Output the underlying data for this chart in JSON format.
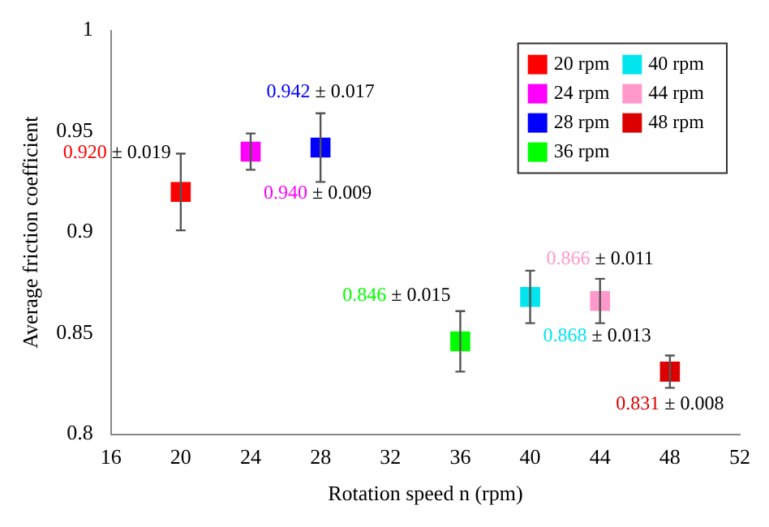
{
  "chart_data": {
    "type": "scatter",
    "xlabel": "Rotation speed n (rpm)",
    "ylabel": "Average friction coefficient",
    "xlim": [
      16,
      52
    ],
    "xticks": [
      16,
      20,
      24,
      28,
      32,
      36,
      40,
      44,
      48,
      52
    ],
    "ylim": [
      0.8,
      1
    ],
    "yticks": [
      0.8,
      0.85,
      0.9,
      0.95,
      1
    ],
    "grid": false,
    "legend": "top right",
    "marker": "square",
    "series": [
      {
        "name": "20 rpm",
        "color": "#ff0000",
        "x": [
          20
        ],
        "values": [
          0.92
        ],
        "errors": [
          0.019
        ]
      },
      {
        "name": "24 rpm",
        "color": "#ff00ff",
        "x": [
          24
        ],
        "values": [
          0.94
        ],
        "errors": [
          0.009
        ]
      },
      {
        "name": "28 rpm",
        "color": "#0000ff",
        "x": [
          28
        ],
        "values": [
          0.942
        ],
        "errors": [
          0.017
        ]
      },
      {
        "name": "36 rpm",
        "color": "#00ff00",
        "x": [
          36
        ],
        "values": [
          0.846
        ],
        "errors": [
          0.015
        ]
      },
      {
        "name": "40 rpm",
        "color": "#00e5ee",
        "x": [
          40
        ],
        "values": [
          0.868
        ],
        "errors": [
          0.013
        ]
      },
      {
        "name": "44 rpm",
        "color": "#ff99cc",
        "x": [
          44
        ],
        "values": [
          0.866
        ],
        "errors": [
          0.011
        ]
      },
      {
        "name": "48 rpm",
        "color": "#dd0000",
        "x": [
          48
        ],
        "values": [
          0.831
        ],
        "errors": [
          0.008
        ]
      }
    ],
    "annotations": [
      {
        "text": "0.920 ± 0.019",
        "x": 20,
        "y": 0.92
      },
      {
        "text": "0.940 ± 0.009",
        "x": 24,
        "y": 0.94
      },
      {
        "text": "0.942 ± 0.017",
        "x": 28,
        "y": 0.942
      },
      {
        "text": "0.846 ± 0.015",
        "x": 36,
        "y": 0.846
      },
      {
        "text": "0.868 ± 0.013",
        "x": 40,
        "y": 0.868
      },
      {
        "text": "0.866 ± 0.011",
        "x": 44,
        "y": 0.866
      },
      {
        "text": "0.831 ± 0.008",
        "x": 48,
        "y": 0.831
      }
    ]
  }
}
